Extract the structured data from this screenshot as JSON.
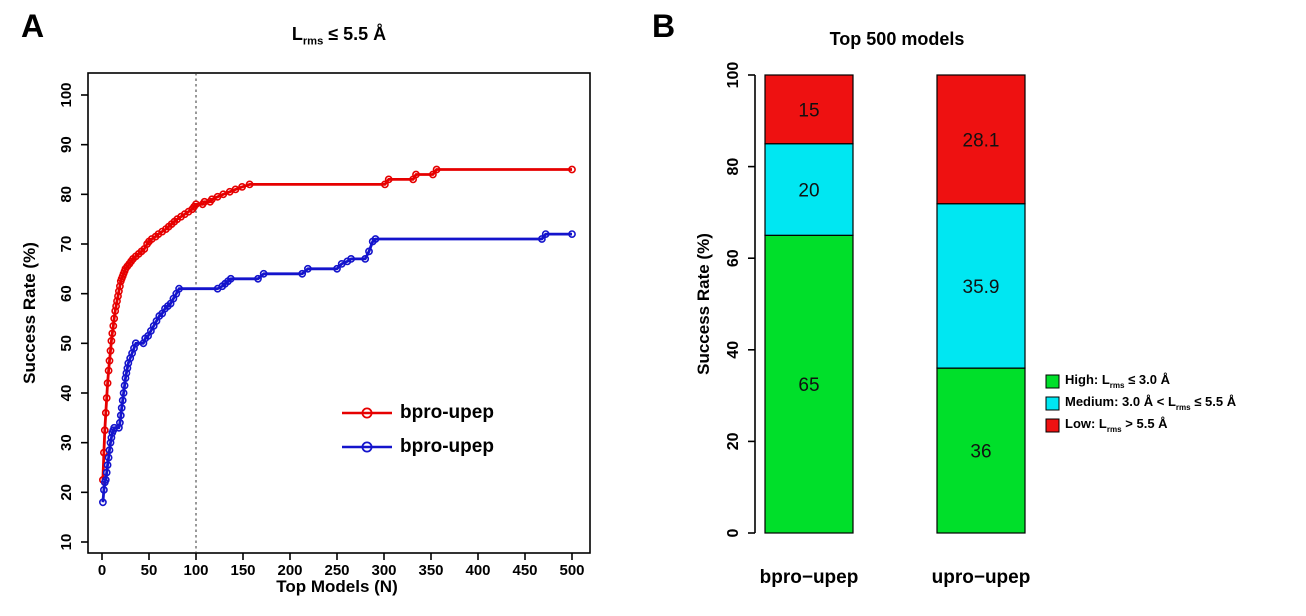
{
  "panels": {
    "a": "A",
    "b": "B"
  },
  "chart_data": [
    {
      "type": "line",
      "title": "L_{rms} ≤ 5.5 Å",
      "xlabel": "Top Models (N)",
      "ylabel": "Success Rate (%)",
      "xlim": [
        0,
        500
      ],
      "ylim": [
        10,
        100
      ],
      "xticks": [
        0,
        50,
        100,
        150,
        200,
        250,
        300,
        350,
        400,
        450,
        500
      ],
      "yticks": [
        10,
        20,
        30,
        40,
        50,
        60,
        70,
        80,
        90,
        100
      ],
      "vline_x": 100,
      "legend_position": "inside-lower-right",
      "grid": false,
      "series": [
        {
          "name": "bpro-upep",
          "color": "#e60000",
          "marker": "open-circle",
          "points": [
            [
              1,
              22.5
            ],
            [
              2,
              28
            ],
            [
              3,
              32.5
            ],
            [
              4,
              36
            ],
            [
              5,
              39
            ],
            [
              6,
              42
            ],
            [
              7,
              44.5
            ],
            [
              8,
              46.5
            ],
            [
              9,
              48.5
            ],
            [
              10,
              50.5
            ],
            [
              11,
              52
            ],
            [
              12,
              53.5
            ],
            [
              13,
              55
            ],
            [
              14,
              56.5
            ],
            [
              15,
              57.5
            ],
            [
              16,
              58.5
            ],
            [
              17,
              59.5
            ],
            [
              18,
              60.5
            ],
            [
              19,
              61.5
            ],
            [
              20,
              62.5
            ],
            [
              21,
              63
            ],
            [
              22,
              63.5
            ],
            [
              23,
              64
            ],
            [
              24,
              64.5
            ],
            [
              25,
              65
            ],
            [
              27,
              65.5
            ],
            [
              29,
              66
            ],
            [
              31,
              66.5
            ],
            [
              33,
              67
            ],
            [
              36,
              67.5
            ],
            [
              39,
              68
            ],
            [
              42,
              68.5
            ],
            [
              45,
              69
            ],
            [
              48,
              70
            ],
            [
              50,
              70.5
            ],
            [
              53,
              71
            ],
            [
              57,
              71.5
            ],
            [
              60,
              72
            ],
            [
              64,
              72.5
            ],
            [
              68,
              73
            ],
            [
              71,
              73.5
            ],
            [
              74,
              74
            ],
            [
              77,
              74.5
            ],
            [
              80,
              75
            ],
            [
              84,
              75.5
            ],
            [
              88,
              76
            ],
            [
              92,
              76.5
            ],
            [
              96,
              77
            ],
            [
              98,
              77.5
            ],
            [
              100,
              78
            ],
            [
              107,
              78
            ],
            [
              109,
              78.5
            ],
            [
              115,
              78.5
            ],
            [
              117,
              79
            ],
            [
              123,
              79.5
            ],
            [
              129,
              80
            ],
            [
              136,
              80.5
            ],
            [
              142,
              81
            ],
            [
              149,
              81.5
            ],
            [
              157,
              82
            ],
            [
              301,
              82
            ],
            [
              305,
              83
            ],
            [
              331,
              83
            ],
            [
              334,
              84
            ],
            [
              352,
              84
            ],
            [
              356,
              85
            ],
            [
              500,
              85
            ]
          ]
        },
        {
          "name": "bpro-upep",
          "color": "#1414cc",
          "marker": "open-circle",
          "points": [
            [
              1,
              18
            ],
            [
              2,
              20.5
            ],
            [
              3,
              22
            ],
            [
              4,
              22.5
            ],
            [
              5,
              24
            ],
            [
              6,
              25.5
            ],
            [
              7,
              27
            ],
            [
              8,
              28.5
            ],
            [
              9,
              30
            ],
            [
              10,
              31
            ],
            [
              11,
              32
            ],
            [
              12,
              32.5
            ],
            [
              13,
              33
            ],
            [
              18,
              33
            ],
            [
              19,
              34
            ],
            [
              20,
              35.5
            ],
            [
              21,
              37
            ],
            [
              22,
              38.5
            ],
            [
              23,
              40
            ],
            [
              24,
              41.5
            ],
            [
              25,
              43
            ],
            [
              26,
              44
            ],
            [
              27,
              45
            ],
            [
              28,
              46
            ],
            [
              30,
              47
            ],
            [
              32,
              48
            ],
            [
              34,
              49
            ],
            [
              36,
              50
            ],
            [
              44,
              50
            ],
            [
              46,
              51
            ],
            [
              49,
              51.5
            ],
            [
              52,
              52.5
            ],
            [
              55,
              53.5
            ],
            [
              58,
              54.5
            ],
            [
              61,
              55.5
            ],
            [
              64,
              56
            ],
            [
              67,
              57
            ],
            [
              70,
              57.5
            ],
            [
              73,
              58
            ],
            [
              76,
              59
            ],
            [
              79,
              60
            ],
            [
              82,
              61
            ],
            [
              123,
              61
            ],
            [
              128,
              61.5
            ],
            [
              131,
              62
            ],
            [
              134,
              62.5
            ],
            [
              137,
              63
            ],
            [
              166,
              63
            ],
            [
              172,
              64
            ],
            [
              213,
              64
            ],
            [
              219,
              65
            ],
            [
              250,
              65
            ],
            [
              255,
              66
            ],
            [
              261,
              66.5
            ],
            [
              265,
              67
            ],
            [
              280,
              67
            ],
            [
              284,
              68.5
            ],
            [
              288,
              70.5
            ],
            [
              291,
              71
            ],
            [
              468,
              71
            ],
            [
              472,
              72
            ],
            [
              500,
              72
            ]
          ]
        }
      ]
    },
    {
      "type": "stacked_bar",
      "title": "Top 500 models",
      "ylabel": "Success Rate (%)",
      "ylim": [
        0,
        100
      ],
      "yticks": [
        0,
        20,
        40,
        60,
        80,
        100
      ],
      "categories": [
        "bpro−upep",
        "upro−upep"
      ],
      "legend_position": "right",
      "grid": false,
      "series": [
        {
          "name": "High: L_{rms} ≤ 3.0 Å",
          "color": "#00df2a",
          "values": [
            65,
            36
          ]
        },
        {
          "name": "Medium: 3.0 Å < L_{rms} ≤ 5.5 Å",
          "color": "#00e7f2",
          "values": [
            20,
            35.9
          ]
        },
        {
          "name": "Low: L_{rms} > 5.5 Å",
          "color": "#ee1111",
          "values": [
            15,
            28.1
          ]
        }
      ],
      "value_labels": [
        [
          "65",
          "20",
          "15"
        ],
        [
          "36",
          "35.9",
          "28.1"
        ]
      ],
      "bar_border_color": "#000000"
    }
  ]
}
